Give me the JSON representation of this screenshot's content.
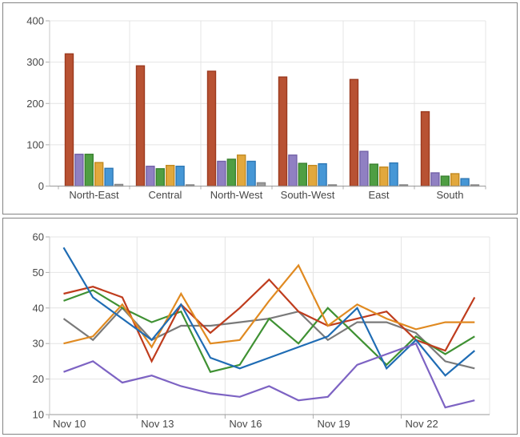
{
  "style": {
    "background": "#ffffff",
    "panel_border": "#838383",
    "grid_color": "#e4e4e4",
    "axis_color": "#9a9a9a",
    "minor_axis_color": "#c9c9c9",
    "tick_color": "#aeaeae",
    "label_color": "#474747"
  },
  "chart_data": [
    {
      "type": "bar",
      "title": "",
      "categories": [
        "North-East",
        "Central",
        "North-West",
        "South-West",
        "East",
        "South"
      ],
      "series": [
        {
          "name": "red",
          "color": "#b85233",
          "border": "#9c3a1f",
          "values": [
            320,
            291,
            278,
            264,
            258,
            180
          ]
        },
        {
          "name": "purple",
          "color": "#9080c2",
          "border": "#7362a8",
          "values": [
            77,
            48,
            60,
            75,
            84,
            32
          ]
        },
        {
          "name": "green",
          "color": "#4f9e43",
          "border": "#3a8230",
          "values": [
            77,
            42,
            65,
            55,
            53,
            24
          ]
        },
        {
          "name": "orange",
          "color": "#e2a83d",
          "border": "#c28a22",
          "values": [
            57,
            50,
            75,
            50,
            46,
            30
          ]
        },
        {
          "name": "blue",
          "color": "#4697d6",
          "border": "#2e78b5",
          "values": [
            43,
            48,
            60,
            54,
            56,
            18
          ]
        },
        {
          "name": "gray",
          "color": "#9d9d9d",
          "border": "#858585",
          "values": [
            4,
            3,
            8,
            3,
            3,
            2
          ]
        }
      ],
      "xlabel": "",
      "ylabel": "",
      "ylim": [
        0,
        400
      ],
      "yticks": [
        0,
        100,
        200,
        300,
        400
      ],
      "grid": true,
      "legend": "none"
    },
    {
      "type": "line",
      "title": "",
      "x": [
        "Nov 10",
        "Nov 11",
        "Nov 12",
        "Nov 13",
        "Nov 14",
        "Nov 15",
        "Nov 16",
        "Nov 17",
        "Nov 18",
        "Nov 19",
        "Nov 20",
        "Nov 21",
        "Nov 22",
        "Nov 23",
        "Nov 24"
      ],
      "x_tick_labels": [
        "Nov 10",
        "Nov 13",
        "Nov 16",
        "Nov 19",
        "Nov 22"
      ],
      "x_tick_every": 3,
      "series": [
        {
          "name": "gray",
          "color": "#7a7a7a",
          "values": [
            37,
            31,
            40,
            31,
            35,
            35,
            36,
            37,
            39,
            31,
            36,
            36,
            33,
            25,
            23
          ]
        },
        {
          "name": "green",
          "color": "#3f9133",
          "values": [
            42,
            45,
            40,
            36,
            39,
            22,
            24,
            37,
            30,
            40,
            32,
            24,
            32,
            27,
            32
          ]
        },
        {
          "name": "red",
          "color": "#bf3c1d",
          "values": [
            44,
            46,
            43,
            25,
            41,
            33,
            40,
            48,
            39,
            35,
            37,
            39,
            31,
            28,
            43
          ]
        },
        {
          "name": "orange",
          "color": "#e08a21",
          "values": [
            30,
            32,
            41,
            29,
            44,
            30,
            31,
            42,
            52,
            35,
            41,
            37,
            34,
            36,
            36
          ]
        },
        {
          "name": "blue",
          "color": "#1f6cb4",
          "values": [
            57,
            43,
            37,
            31,
            41,
            26,
            23,
            26,
            29,
            32,
            40,
            23,
            31,
            21,
            28
          ]
        },
        {
          "name": "purple",
          "color": "#7d63c3",
          "values": [
            22,
            25,
            19,
            21,
            18,
            16,
            15,
            18,
            14,
            15,
            24,
            27,
            30,
            12,
            14
          ]
        }
      ],
      "xlabel": "",
      "ylabel": "",
      "ylim": [
        10,
        60
      ],
      "yticks": [
        10,
        20,
        30,
        40,
        50,
        60
      ],
      "grid": true,
      "legend": "none"
    }
  ]
}
